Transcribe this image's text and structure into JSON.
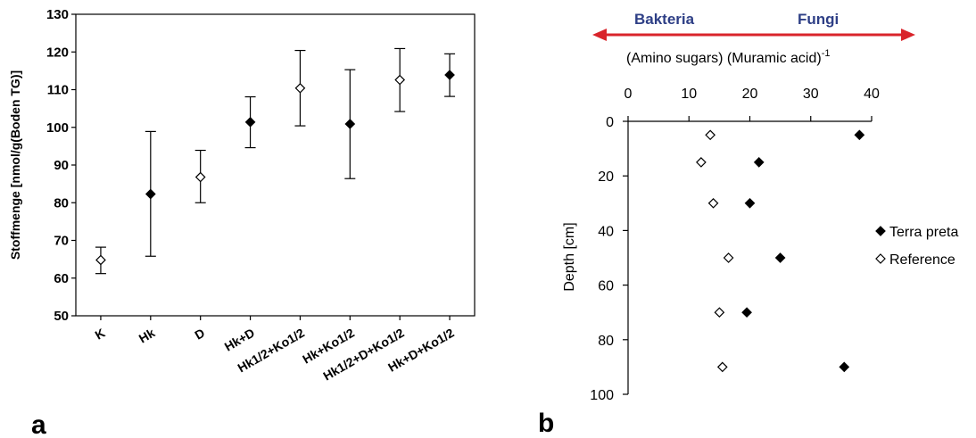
{
  "panel_a_label": "a",
  "panel_b_label": "b",
  "chart_data": [
    {
      "type": "scatter",
      "ylabel": "Stoffmenge [nmol/g(Boden TG)]",
      "xlabel": "",
      "ylim": [
        50,
        130
      ],
      "yticks": [
        50,
        60,
        70,
        80,
        90,
        100,
        110,
        120,
        130
      ],
      "categories": [
        "K",
        "Hk",
        "D",
        "Hk+D",
        "Hk1/2+Ko1/2",
        "Hk+Ko1/2",
        "Hk1/2+D+Ko1/2",
        "Hk+D+Ko1/2"
      ],
      "values": [
        64.8,
        82.3,
        86.8,
        101.4,
        110.4,
        100.9,
        112.6,
        113.9
      ],
      "error_low": [
        61.2,
        65.8,
        80.0,
        94.6,
        100.4,
        86.4,
        104.2,
        108.2
      ],
      "error_high": [
        68.2,
        98.9,
        93.9,
        108.1,
        120.4,
        115.3,
        120.9,
        119.5
      ],
      "marker_fill": [
        "#ffffff",
        "#000000",
        "#ffffff",
        "#000000",
        "#ffffff",
        "#000000",
        "#ffffff",
        "#000000"
      ],
      "grid": false
    },
    {
      "type": "scatter",
      "title": "(Amino sugars) (Muramic acid)",
      "title_superscript": "-1",
      "xlabel": "(Amino sugars) (Muramic acid)",
      "ylabel": "Depth [cm]",
      "xlim": [
        0,
        40
      ],
      "ylim": [
        0,
        100
      ],
      "y_inverted": true,
      "x_axis_position": "top",
      "xticks": [
        0,
        10,
        20,
        30,
        40
      ],
      "yticks": [
        0,
        20,
        40,
        60,
        80,
        100
      ],
      "arrow_left_label": "Bakteria",
      "arrow_right_label": "Fungi",
      "arrow_color": "#d9242b",
      "label_color": "#2e3f86",
      "series": [
        {
          "name": "Terra preta",
          "marker": "filled-diamond",
          "x": [
            38.0,
            21.5,
            20.0,
            25.0,
            19.5,
            35.5
          ],
          "y": [
            5,
            15,
            30,
            50,
            70,
            90
          ]
        },
        {
          "name": "Reference",
          "marker": "open-diamond",
          "x": [
            13.5,
            12.0,
            14.0,
            16.5,
            15.0,
            15.5
          ],
          "y": [
            5,
            15,
            30,
            50,
            70,
            90
          ]
        }
      ],
      "legend_position": "right",
      "grid": false
    }
  ]
}
